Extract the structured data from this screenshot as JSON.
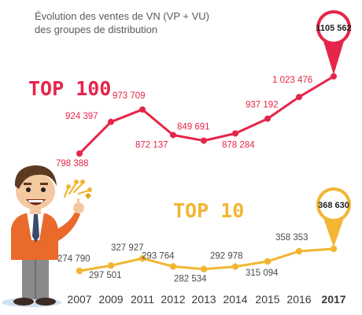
{
  "chart_data": {
    "type": "line",
    "title_lines": [
      "Évolution des ventes de VN (VP + VU)",
      "des groupes de distribution"
    ],
    "categories": [
      "2007",
      "2009",
      "2011",
      "2012",
      "2013",
      "2014",
      "2015",
      "2016",
      "2017"
    ],
    "series": [
      {
        "name": "TOP 100",
        "color": "#e5254a",
        "values": [
          798388,
          924397,
          973709,
          872137,
          849691,
          878284,
          937192,
          1023476,
          1105562
        ],
        "labels": [
          "798 388",
          "924 397",
          "973 709",
          "872 137",
          "849 691",
          "878 284",
          "937 192",
          "1 023 476",
          "1105 562"
        ]
      },
      {
        "name": "TOP 10",
        "color": "#f2b632",
        "values": [
          274790,
          297501,
          327927,
          293764,
          282534,
          292978,
          315094,
          358353,
          368630
        ],
        "labels": [
          "274 790",
          "297 501",
          "327 927",
          "293 764",
          "282 534",
          "292 978",
          "315 094",
          "358 353",
          "368 630"
        ]
      }
    ],
    "highlight": "last point of each series shown in a map-pin marker",
    "grid": false,
    "legend": "none (series names drawn as large labels near each line)"
  }
}
